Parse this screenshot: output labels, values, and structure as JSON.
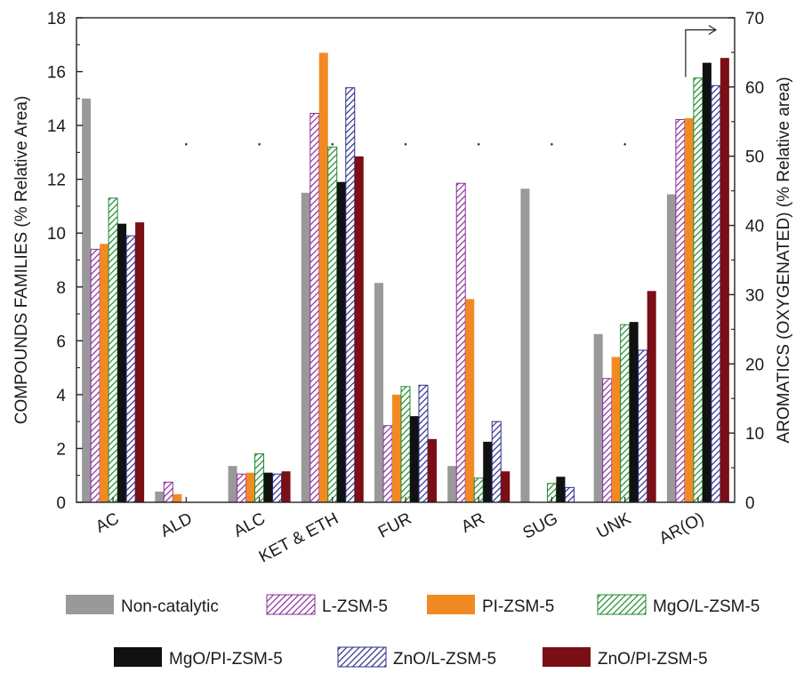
{
  "chart_data": {
    "type": "bar",
    "categories": [
      "AC",
      "ALD",
      "ALC",
      "KET & ETH",
      "FUR",
      "AR",
      "SUG",
      "UNK",
      "AR(O)"
    ],
    "ylabel": "COMPOUNDS FAMILIES (% Relative Area)",
    "y2label": "AROMATICS (OXYGENATED) (% Relative area)",
    "ylim": [
      0,
      18
    ],
    "y2lim": [
      0,
      70
    ],
    "yticks": [
      0,
      2,
      4,
      6,
      8,
      10,
      12,
      14,
      16,
      18
    ],
    "y2ticks": [
      0,
      10,
      20,
      30,
      40,
      50,
      60,
      70
    ],
    "right_axis_category": "AR(O)",
    "grid": false,
    "legend_position": "bottom",
    "series": [
      {
        "name": "Non-catalytic",
        "color": "#999999",
        "pattern": "solid",
        "values": [
          15.0,
          0.4,
          1.35,
          11.5,
          8.15,
          1.35,
          11.65,
          6.25,
          44.5
        ]
      },
      {
        "name": "L-ZSM-5",
        "color": "#8b2d9c",
        "pattern": "hatch",
        "values": [
          9.4,
          0.75,
          1.05,
          14.45,
          2.85,
          11.85,
          0,
          4.6,
          55.3
        ]
      },
      {
        "name": "PI-ZSM-5",
        "color": "#f28a24",
        "pattern": "solid",
        "values": [
          9.6,
          0.3,
          1.1,
          16.7,
          4.0,
          7.55,
          0,
          5.4,
          55.5
        ]
      },
      {
        "name": "MgO/L-ZSM-5",
        "color": "#1f8a2e",
        "pattern": "hatch",
        "values": [
          11.3,
          0,
          1.8,
          13.2,
          4.3,
          0.9,
          0.7,
          6.6,
          61.3
        ]
      },
      {
        "name": "MgO/PI-ZSM-5",
        "color": "#111111",
        "pattern": "solid",
        "values": [
          10.35,
          0,
          1.1,
          11.9,
          3.2,
          2.25,
          0.95,
          6.7,
          63.5
        ]
      },
      {
        "name": "ZnO/L-ZSM-5",
        "color": "#2b2d8a",
        "pattern": "hatch",
        "values": [
          9.9,
          0,
          1.05,
          15.4,
          4.35,
          3.0,
          0.55,
          5.65,
          60.2
        ]
      },
      {
        "name": "ZnO/PI-ZSM-5",
        "color": "#7a0f16",
        "pattern": "solid",
        "values": [
          10.4,
          0,
          1.15,
          12.85,
          2.35,
          1.15,
          0,
          7.85,
          64.2
        ]
      }
    ]
  }
}
